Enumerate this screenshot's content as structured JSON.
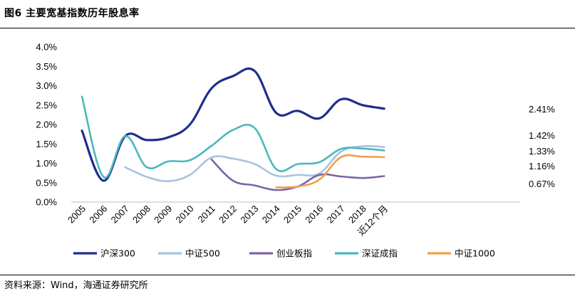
{
  "figure": {
    "title": "图6  主要宽基指数历年股息率",
    "source": "资料来源：Wind，海通证券研究所"
  },
  "chart_data": {
    "type": "line",
    "categories": [
      "2005",
      "2006",
      "2007",
      "2008",
      "2009",
      "2010",
      "2011",
      "2012",
      "2013",
      "2014",
      "2015",
      "2016",
      "2017",
      "2018",
      "近12个月"
    ],
    "y_ticks": [
      "0.0%",
      "0.5%",
      "1.0%",
      "1.5%",
      "2.0%",
      "2.5%",
      "3.0%",
      "3.5%",
      "4.0%"
    ],
    "ylim": [
      0,
      4.0
    ],
    "y_unit": "%",
    "grid": false,
    "legend_position": "bottom",
    "series": [
      {
        "name": "沪深300",
        "color": "#1f2e8c",
        "width": 3.2,
        "values": [
          1.84,
          0.55,
          1.7,
          1.6,
          1.67,
          2.0,
          2.93,
          3.25,
          3.38,
          2.3,
          2.35,
          2.16,
          2.65,
          2.5,
          2.41
        ]
      },
      {
        "name": "中证500",
        "color": "#a9c3de",
        "width": 2.6,
        "values": [
          null,
          null,
          0.9,
          0.65,
          0.54,
          0.7,
          1.15,
          1.12,
          0.98,
          0.68,
          0.7,
          0.74,
          1.3,
          1.44,
          1.42
        ]
      },
      {
        "name": "创业板指",
        "color": "#7d64a8",
        "width": 2.6,
        "values": [
          null,
          null,
          null,
          null,
          null,
          null,
          1.1,
          0.55,
          0.43,
          0.31,
          0.4,
          0.7,
          0.66,
          0.62,
          0.67
        ]
      },
      {
        "name": "深证成指",
        "color": "#4bb7bd",
        "width": 2.6,
        "values": [
          2.72,
          0.65,
          1.7,
          0.9,
          1.05,
          1.08,
          1.45,
          1.86,
          1.91,
          0.85,
          0.98,
          1.03,
          1.37,
          1.38,
          1.33
        ]
      },
      {
        "name": "中证1000",
        "color": "#f0a04a",
        "width": 2.6,
        "values": [
          null,
          null,
          null,
          null,
          null,
          null,
          null,
          null,
          null,
          0.38,
          0.4,
          0.58,
          1.16,
          1.17,
          1.16
        ]
      }
    ],
    "end_labels": [
      {
        "text": "2.41%"
      },
      {
        "text": "1.42%"
      },
      {
        "text": "1.33%"
      },
      {
        "text": "1.16%"
      },
      {
        "text": "0.67%"
      }
    ]
  }
}
